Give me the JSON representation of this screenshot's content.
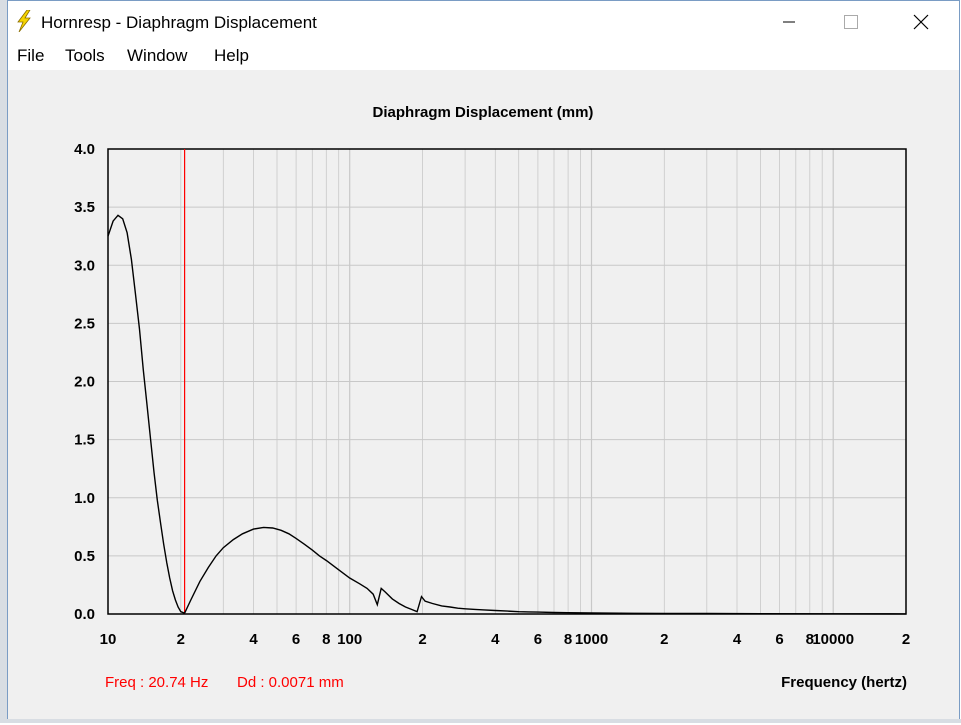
{
  "window": {
    "title": "Hornresp - Diaphragm Displacement"
  },
  "menu": [
    "File",
    "Tools",
    "Window",
    "Help"
  ],
  "colors": {
    "plot_line": "#000000",
    "cursor": "#ff0000",
    "grid": "#c8c8c8",
    "readout": "#ff0000"
  },
  "readout": {
    "freq": "Freq : 20.74 Hz",
    "dd": "Dd : 0.0071 mm"
  },
  "chart_data": {
    "type": "line",
    "title": "Diaphragm Displacement (mm)",
    "xlabel": "Frequency (hertz)",
    "ylabel": "",
    "x_scale": "log",
    "xlim": [
      10,
      20000
    ],
    "ylim": [
      0,
      4
    ],
    "grid": true,
    "y_ticks": [
      "0.0",
      "0.5",
      "1.0",
      "1.5",
      "2.0",
      "2.5",
      "3.0",
      "3.5",
      "4.0"
    ],
    "x_tick_labels": [
      {
        "value": 10,
        "label": "10"
      },
      {
        "value": 20,
        "label": "2"
      },
      {
        "value": 40,
        "label": "4"
      },
      {
        "value": 60,
        "label": "6"
      },
      {
        "value": 80,
        "label": "8"
      },
      {
        "value": 100,
        "label": "100"
      },
      {
        "value": 200,
        "label": "2"
      },
      {
        "value": 400,
        "label": "4"
      },
      {
        "value": 600,
        "label": "6"
      },
      {
        "value": 800,
        "label": "8"
      },
      {
        "value": 1000,
        "label": "1000"
      },
      {
        "value": 2000,
        "label": "2"
      },
      {
        "value": 4000,
        "label": "4"
      },
      {
        "value": 6000,
        "label": "6"
      },
      {
        "value": 8000,
        "label": "8"
      },
      {
        "value": 10000,
        "label": "10000"
      },
      {
        "value": 20000,
        "label": "2"
      }
    ],
    "cursor_x": 20.74,
    "series": [
      {
        "x": [
          10,
          10.5,
          11,
          11.5,
          12,
          12.5,
          13,
          13.5,
          14,
          14.5,
          15,
          15.5,
          16,
          16.5,
          17,
          17.5,
          18,
          18.5,
          19,
          19.5,
          20,
          20.74,
          22,
          24,
          26,
          28,
          30,
          33,
          36,
          40,
          44,
          48,
          52,
          56,
          60,
          65,
          70,
          75,
          80,
          90,
          100,
          110,
          118,
          125,
          130,
          135,
          140,
          150,
          160,
          170,
          180,
          190,
          198,
          205,
          220,
          240,
          260,
          280,
          300,
          330,
          360,
          400,
          450,
          500,
          550,
          600,
          700,
          800,
          1000,
          1500,
          2000,
          3000,
          5000,
          10000,
          20000
        ],
        "y": [
          3.25,
          3.38,
          3.43,
          3.4,
          3.28,
          3.05,
          2.75,
          2.45,
          2.1,
          1.8,
          1.5,
          1.22,
          0.98,
          0.78,
          0.6,
          0.44,
          0.31,
          0.2,
          0.12,
          0.06,
          0.02,
          0.007,
          0.12,
          0.28,
          0.4,
          0.5,
          0.57,
          0.64,
          0.69,
          0.73,
          0.745,
          0.74,
          0.72,
          0.69,
          0.65,
          0.6,
          0.55,
          0.5,
          0.46,
          0.38,
          0.31,
          0.26,
          0.22,
          0.17,
          0.08,
          0.22,
          0.19,
          0.13,
          0.09,
          0.06,
          0.04,
          0.02,
          0.15,
          0.11,
          0.09,
          0.07,
          0.06,
          0.05,
          0.045,
          0.04,
          0.035,
          0.03,
          0.025,
          0.02,
          0.018,
          0.016,
          0.013,
          0.011,
          0.009,
          0.006,
          0.005,
          0.004,
          0.003,
          0.002,
          0.001
        ]
      }
    ]
  }
}
